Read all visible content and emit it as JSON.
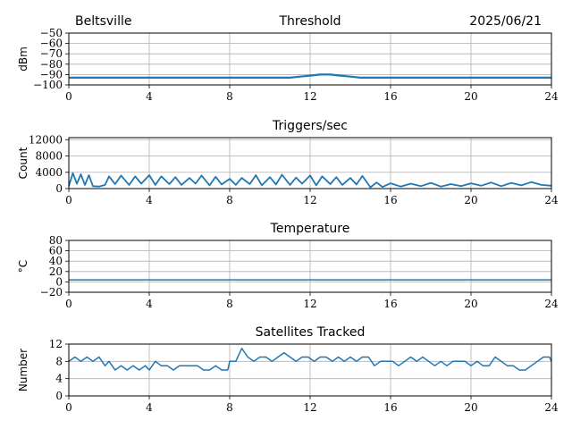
{
  "header": {
    "location": "Beltsville",
    "date": "2025/06/21"
  },
  "colors": {
    "series": "#1f77b4",
    "grid": "#b0b0b0",
    "axis": "#000000"
  },
  "chart_data": [
    {
      "type": "line",
      "title": "Threshold",
      "xlabel": "",
      "ylabel": "dBm",
      "xlim": [
        0,
        24
      ],
      "ylim": [
        -100,
        -50
      ],
      "xticks": [
        0,
        4,
        8,
        12,
        16,
        20,
        24
      ],
      "yticks": [
        -100,
        -90,
        -80,
        -70,
        -60,
        -50
      ],
      "grid": true,
      "series": [
        {
          "x": [
            0,
            1,
            2,
            3,
            4,
            5,
            6,
            7,
            8,
            9,
            10,
            11,
            11.5,
            12,
            12.5,
            13,
            13.5,
            14,
            14.5,
            15,
            16,
            17,
            18,
            19,
            20,
            21,
            22,
            23,
            24
          ],
          "y": [
            -93,
            -93,
            -93,
            -93,
            -93,
            -93,
            -93,
            -93,
            -93,
            -93,
            -93,
            -93,
            -92,
            -91,
            -90,
            -90,
            -91,
            -92,
            -93,
            -93,
            -93,
            -93,
            -93,
            -93,
            -93,
            -93,
            -93,
            -93,
            -93
          ]
        }
      ]
    },
    {
      "type": "line",
      "title": "Triggers/sec",
      "xlabel": "",
      "ylabel": "Count",
      "xlim": [
        0,
        24
      ],
      "ylim": [
        0,
        12500
      ],
      "xticks": [
        0,
        4,
        8,
        12,
        16,
        20,
        24
      ],
      "yticks": [
        0,
        4000,
        8000,
        12000
      ],
      "ytick_labels": [
        "0",
        "4000",
        "8000",
        "12000"
      ],
      "grid": true,
      "series": [
        {
          "x": [
            0,
            0.2,
            0.4,
            0.6,
            0.8,
            1.0,
            1.2,
            1.5,
            1.8,
            2.0,
            2.3,
            2.6,
            3.0,
            3.3,
            3.6,
            4.0,
            4.3,
            4.6,
            5.0,
            5.3,
            5.6,
            6.0,
            6.3,
            6.6,
            7.0,
            7.3,
            7.6,
            8.0,
            8.3,
            8.6,
            9.0,
            9.3,
            9.6,
            10.0,
            10.3,
            10.6,
            11.0,
            11.3,
            11.6,
            12.0,
            12.3,
            12.6,
            13.0,
            13.3,
            13.6,
            14.0,
            14.3,
            14.6,
            15.0,
            15.3,
            15.6,
            16.0,
            16.5,
            17.0,
            17.5,
            18.0,
            18.5,
            19.0,
            19.5,
            20.0,
            20.5,
            21.0,
            21.5,
            22.0,
            22.5,
            23.0,
            23.5,
            24.0
          ],
          "y": [
            600,
            3800,
            1200,
            3500,
            900,
            3300,
            600,
            500,
            900,
            3000,
            1100,
            3200,
            900,
            3000,
            1200,
            3300,
            900,
            3000,
            1100,
            2800,
            900,
            2600,
            1200,
            3200,
            800,
            2900,
            1000,
            2400,
            900,
            2600,
            1100,
            3300,
            800,
            2800,
            1000,
            3400,
            900,
            2700,
            1200,
            3200,
            800,
            3000,
            1100,
            2800,
            900,
            2600,
            1000,
            3100,
            300,
            1500,
            400,
            1300,
            500,
            1200,
            600,
            1400,
            500,
            1100,
            600,
            1300,
            700,
            1500,
            600,
            1400,
            800,
            1600,
            900,
            700
          ]
        }
      ]
    },
    {
      "type": "line",
      "title": "Temperature",
      "xlabel": "",
      "ylabel": "°C",
      "xlim": [
        0,
        24
      ],
      "ylim": [
        -20,
        80
      ],
      "xticks": [
        0,
        4,
        8,
        12,
        16,
        20,
        24
      ],
      "yticks": [
        -20,
        0,
        20,
        40,
        60,
        80
      ],
      "grid": true,
      "series": [
        {
          "x": [
            0,
            4,
            8,
            12,
            16,
            20,
            24
          ],
          "y": [
            4,
            4,
            4,
            4,
            4,
            4,
            4
          ]
        }
      ]
    },
    {
      "type": "line",
      "title": "Satellites Tracked",
      "xlabel": "",
      "ylabel": "Number",
      "xlim": [
        0,
        24
      ],
      "ylim": [
        0,
        12
      ],
      "xticks": [
        0,
        4,
        8,
        12,
        16,
        20,
        24
      ],
      "yticks": [
        0,
        4,
        8,
        12
      ],
      "grid": true,
      "series": [
        {
          "x": [
            0,
            0.3,
            0.6,
            0.9,
            1.2,
            1.5,
            1.8,
            2.0,
            2.3,
            2.6,
            2.9,
            3.2,
            3.5,
            3.8,
            4.0,
            4.3,
            4.6,
            4.9,
            5.2,
            5.5,
            5.8,
            6.1,
            6.4,
            6.7,
            7.0,
            7.3,
            7.6,
            7.9,
            8.0,
            8.3,
            8.6,
            8.9,
            9.2,
            9.5,
            9.8,
            10.1,
            10.4,
            10.7,
            11.0,
            11.3,
            11.6,
            11.9,
            12.2,
            12.5,
            12.8,
            13.1,
            13.4,
            13.7,
            14.0,
            14.3,
            14.6,
            14.9,
            15.2,
            15.5,
            15.8,
            16.1,
            16.4,
            16.7,
            17.0,
            17.3,
            17.6,
            17.9,
            18.2,
            18.5,
            18.8,
            19.1,
            19.4,
            19.7,
            20.0,
            20.3,
            20.6,
            20.9,
            21.2,
            21.5,
            21.8,
            22.1,
            22.4,
            22.7,
            23.0,
            23.3,
            23.6,
            23.9,
            24.0
          ],
          "y": [
            8,
            9,
            8,
            9,
            8,
            9,
            7,
            8,
            6,
            7,
            6,
            7,
            6,
            7,
            6,
            8,
            7,
            7,
            6,
            7,
            7,
            7,
            7,
            6,
            6,
            7,
            6,
            6,
            8,
            8,
            11,
            9,
            8,
            9,
            9,
            8,
            9,
            10,
            9,
            8,
            9,
            9,
            8,
            9,
            9,
            8,
            9,
            8,
            9,
            8,
            9,
            9,
            7,
            8,
            8,
            8,
            7,
            8,
            9,
            8,
            9,
            8,
            7,
            8,
            7,
            8,
            8,
            8,
            7,
            8,
            7,
            7,
            9,
            8,
            7,
            7,
            6,
            6,
            7,
            8,
            9,
            9,
            8
          ]
        }
      ]
    }
  ]
}
